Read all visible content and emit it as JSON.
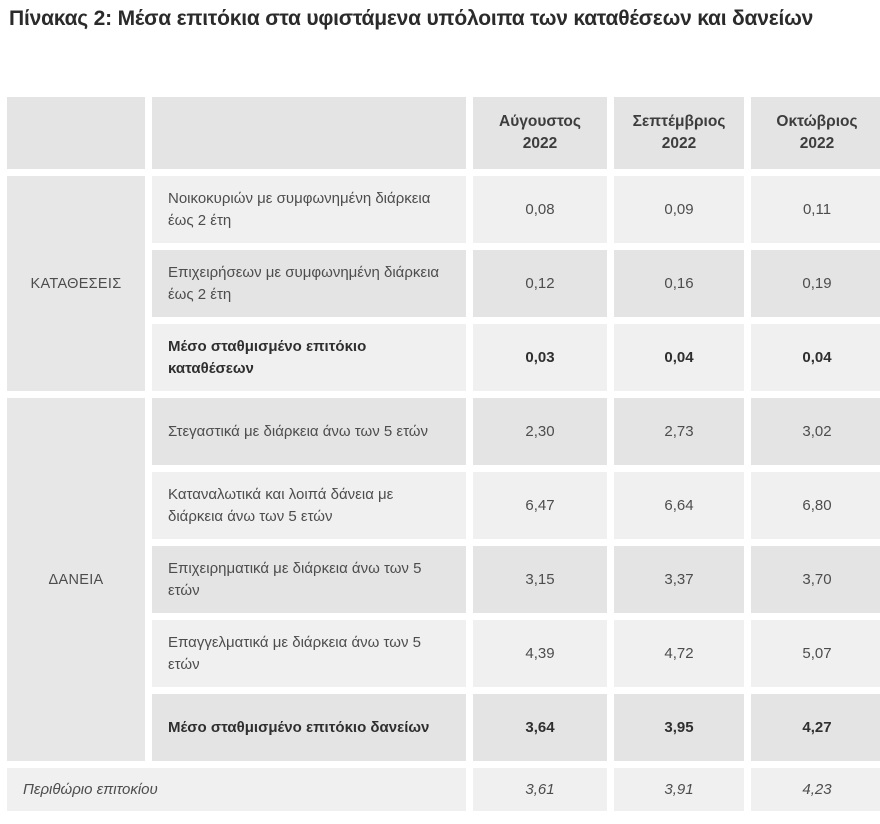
{
  "title": "Πίνακας 2: Μέσα επιτόκια στα υφιστάμενα υπόλοιπα των καταθέσεων και δανείων",
  "table": {
    "columns": [
      {
        "month": "Αύγουστος",
        "year": "2022"
      },
      {
        "month": "Σεπτέμβριος",
        "year": "2022"
      },
      {
        "month": "Οκτώβριος",
        "year": "2022"
      }
    ],
    "groups": [
      {
        "label": "ΚΑΤΑΘΕΣΕΙΣ",
        "rows": [
          {
            "label": "Νοικοκυριών με συμφωνημένη διάρκεια έως 2 έτη",
            "values": [
              "0,08",
              "0,09",
              "0,11"
            ],
            "bold": false
          },
          {
            "label": "Επιχειρήσεων με συμφωνημένη διάρκεια έως 2 έτη",
            "values": [
              "0,12",
              "0,16",
              "0,19"
            ],
            "bold": false
          },
          {
            "label": "Μέσο σταθμισμένο επιτόκιο καταθέσεων",
            "values": [
              "0,03",
              "0,04",
              "0,04"
            ],
            "bold": true
          }
        ]
      },
      {
        "label": "ΔΑΝΕΙΑ",
        "rows": [
          {
            "label": "Στεγαστικά με διάρκεια άνω των 5 ετών",
            "values": [
              "2,30",
              "2,73",
              "3,02"
            ],
            "bold": false
          },
          {
            "label": "Καταναλωτικά και λοιπά δάνεια με διάρκεια άνω των 5 ετών",
            "values": [
              "6,47",
              "6,64",
              "6,80"
            ],
            "bold": false
          },
          {
            "label": "Επιχειρηματικά με διάρκεια άνω των 5 ετών",
            "values": [
              "3,15",
              "3,37",
              "3,70"
            ],
            "bold": false
          },
          {
            "label": "Επαγγελματικά με διάρκεια άνω των 5 ετών",
            "values": [
              "4,39",
              "4,72",
              "5,07"
            ],
            "bold": false
          },
          {
            "label": "Μέσο σταθμισμένο επιτόκιο δανείων",
            "values": [
              "3,64",
              "3,95",
              "4,27"
            ],
            "bold": true
          }
        ]
      }
    ],
    "footer": {
      "label": "Περιθώριο επιτοκίου",
      "values": [
        "3,61",
        "3,91",
        "4,23"
      ]
    }
  },
  "colors": {
    "row_dark": "#e4e4e4",
    "row_light": "#f0f0f0",
    "group_cell": "#e7e7e7",
    "text": "#4d4d4d",
    "title_text": "#2b2b2b"
  }
}
